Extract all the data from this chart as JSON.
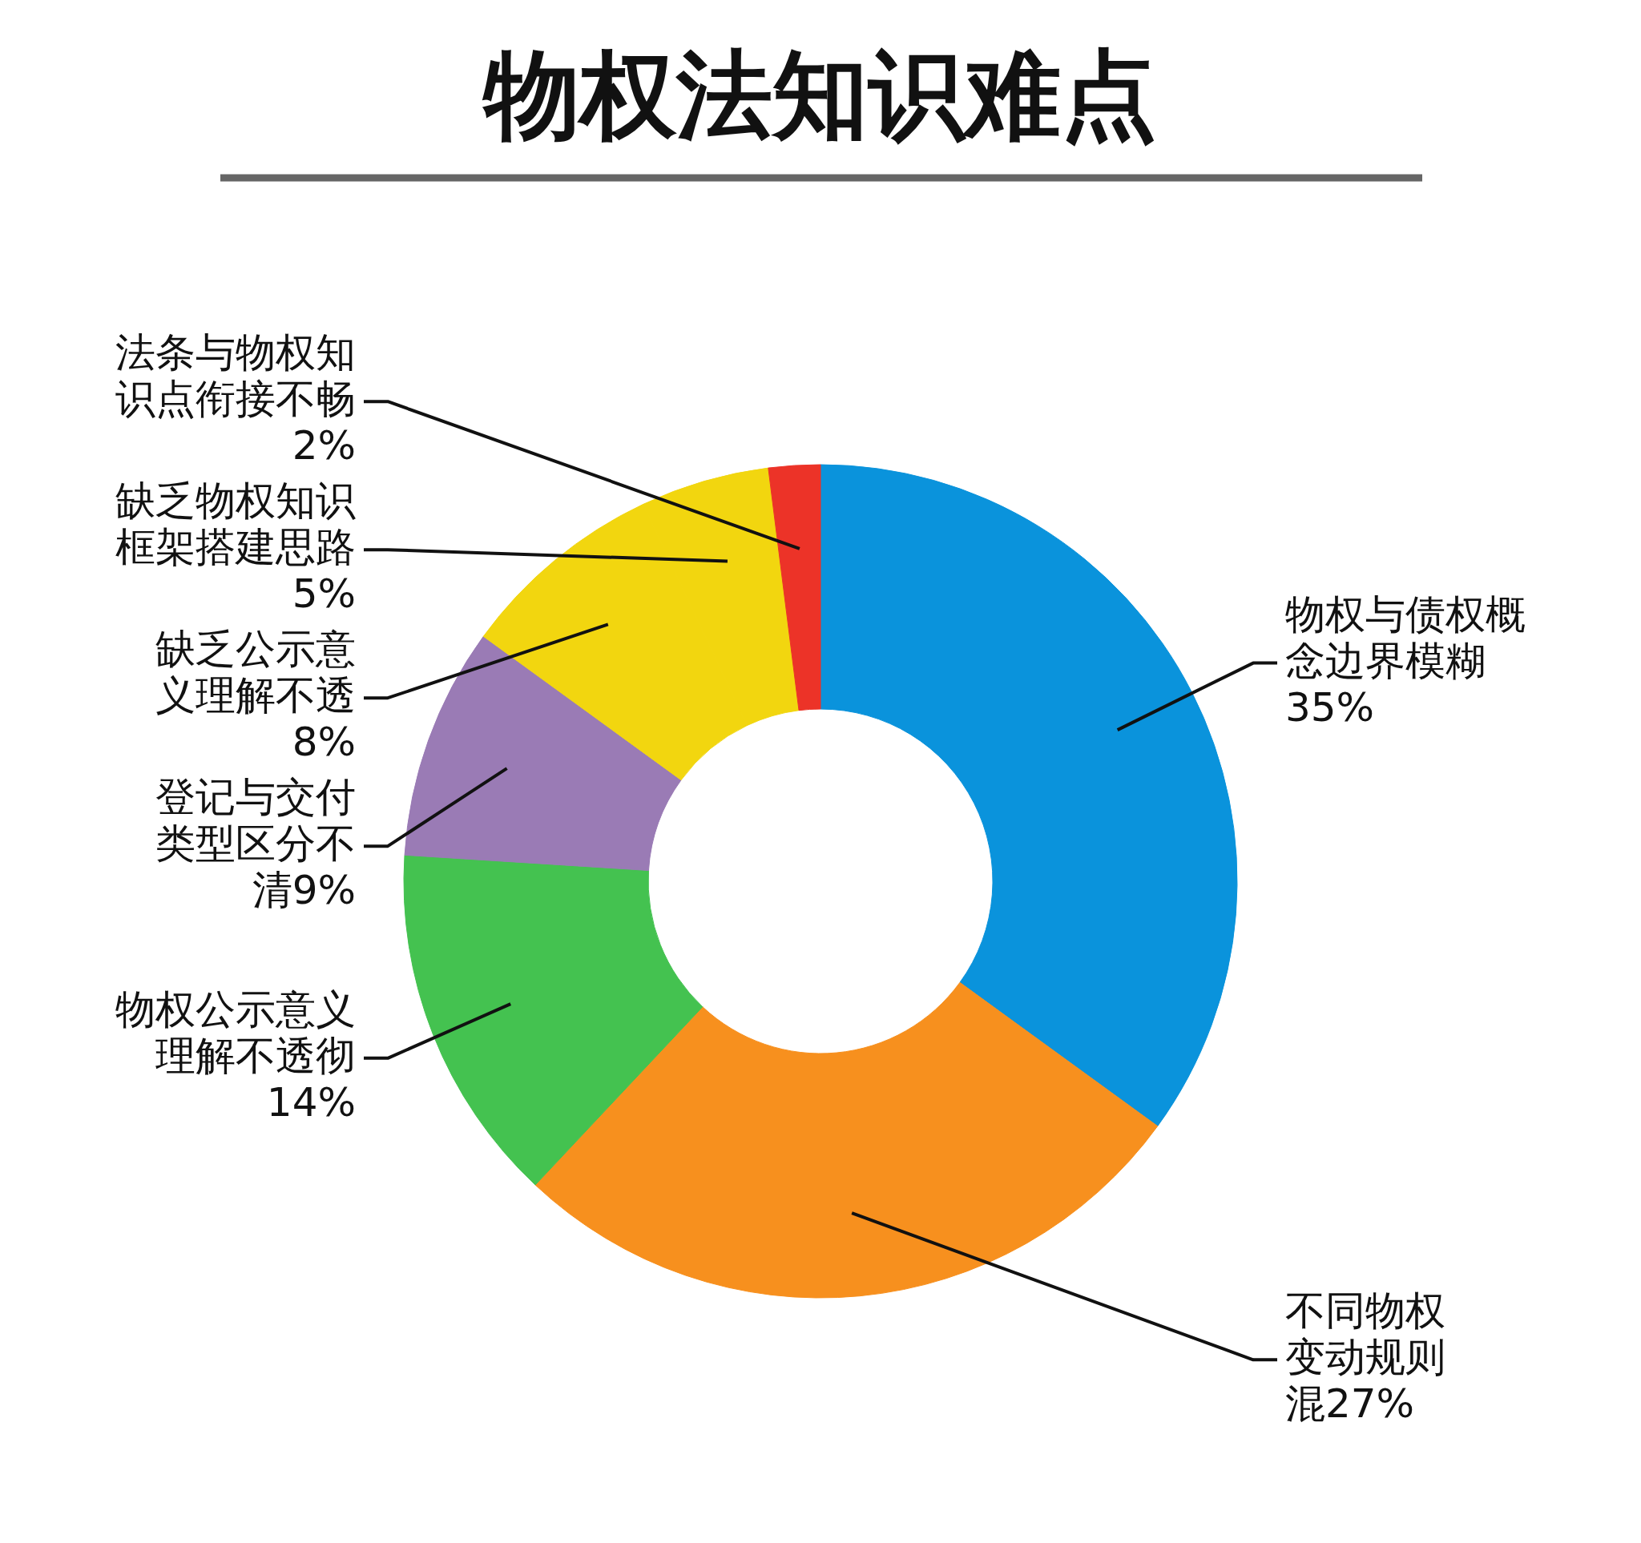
{
  "chart_data": {
    "type": "donut",
    "title": "物权法知识难点",
    "categories": [
      "物权与债权概念边界模糊",
      "不同物权变动规则混",
      "物权公示意义理解不透彻",
      "登记与交付类型区分不清",
      "缺乏公示意义理解不透",
      "缺乏物权知识框架搭建思路",
      "法条与物权知识点衔接不畅"
    ],
    "values": [
      35,
      27,
      14,
      9,
      8,
      5,
      2
    ],
    "colors": [
      "#0a93dc",
      "#f7901e",
      "#44c250",
      "#9a7bb5",
      "#f2d60f",
      "#f2d60f",
      "#ec3328"
    ],
    "value_labels": [
      "35%",
      "27%",
      "14%",
      "9%",
      "8%",
      "5%",
      "2%"
    ]
  }
}
